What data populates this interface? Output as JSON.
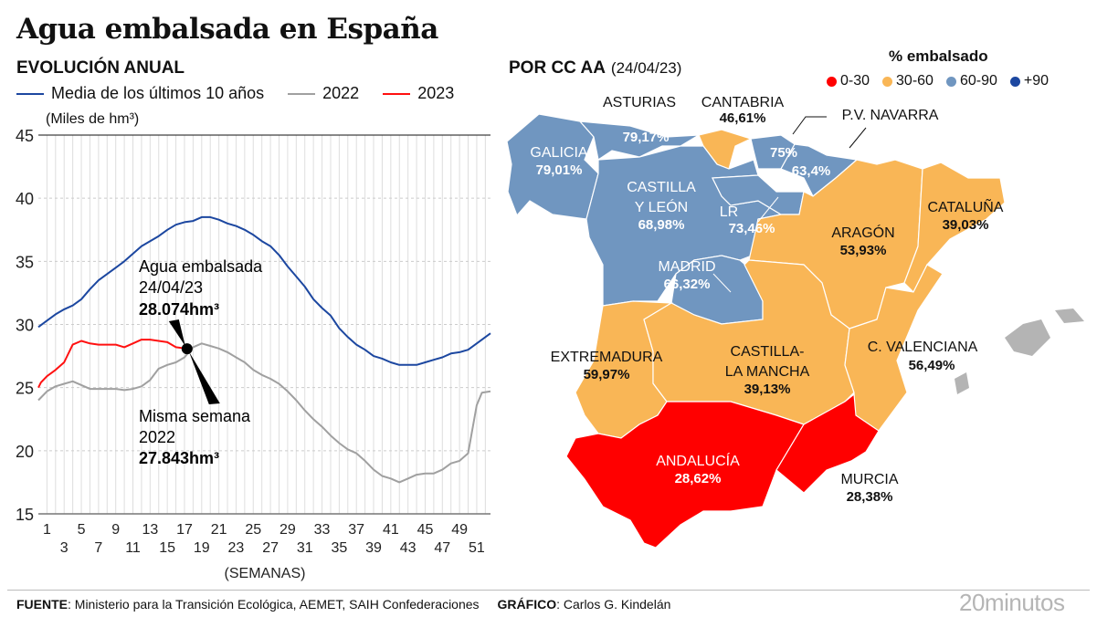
{
  "title": "Agua embalsada en España",
  "left_panel": {
    "subtitle": "EVOLUCIÓN ANUAL",
    "unit_label": "(Miles de hm³)",
    "legend": [
      {
        "label": "Media de los últimos 10 años",
        "color": "#1c47a0"
      },
      {
        "label": "2022",
        "color": "#a0a0a0"
      },
      {
        "label": "2023",
        "color": "#ff1010"
      }
    ]
  },
  "chart_data": {
    "type": "line",
    "xlabel": "(SEMANAS)",
    "ylabel": "(Miles de hm³)",
    "ylim": [
      15,
      45
    ],
    "yticks": [
      15,
      20,
      25,
      30,
      35,
      40,
      45
    ],
    "xticks": [
      1,
      3,
      5,
      7,
      9,
      11,
      13,
      15,
      17,
      19,
      21,
      23,
      25,
      27,
      29,
      31,
      33,
      35,
      37,
      39,
      41,
      43,
      45,
      47,
      49,
      51
    ],
    "xlim": [
      0,
      52.6
    ],
    "grid": {
      "vertical_per_week": true,
      "horizontal_dashed": true
    },
    "series": [
      {
        "name": "Media de los últimos 10 años",
        "color": "#1c47a0",
        "x": [
          0,
          1,
          2,
          3,
          4,
          5,
          6,
          7,
          8,
          9,
          10,
          11,
          12,
          13,
          14,
          15,
          16,
          17,
          18,
          19,
          20,
          21,
          22,
          23,
          24,
          25,
          26,
          27,
          28,
          29,
          30,
          31,
          32,
          33,
          34,
          35,
          36,
          37,
          38,
          39,
          40,
          41,
          42,
          43,
          44,
          45,
          46,
          47,
          48,
          49,
          50,
          51,
          52.6
        ],
        "values": [
          29.8,
          30.3,
          30.8,
          31.2,
          31.5,
          32.0,
          32.8,
          33.5,
          34.0,
          34.5,
          35.0,
          35.6,
          36.2,
          36.6,
          37.0,
          37.5,
          37.9,
          38.1,
          38.2,
          38.5,
          38.5,
          38.3,
          38.0,
          37.8,
          37.5,
          37.1,
          36.6,
          36.2,
          35.5,
          34.6,
          33.8,
          33.0,
          32.0,
          31.3,
          30.7,
          29.7,
          29.0,
          28.4,
          28.0,
          27.5,
          27.3,
          27.0,
          26.8,
          26.8,
          26.8,
          27.0,
          27.2,
          27.4,
          27.7,
          27.8,
          28.0,
          28.5,
          29.3
        ]
      },
      {
        "name": "2022",
        "color": "#a0a0a0",
        "x": [
          0,
          1,
          2,
          3,
          4,
          5,
          6,
          7,
          8,
          9,
          10,
          11,
          12,
          13,
          14,
          15,
          16,
          17,
          18,
          19,
          20,
          21,
          22,
          23,
          24,
          25,
          26,
          27,
          28,
          29,
          30,
          31,
          32,
          33,
          34,
          35,
          36,
          37,
          38,
          39,
          40,
          41,
          42,
          43,
          44,
          45,
          46,
          47,
          48,
          49,
          50,
          51,
          51.6,
          52.6
        ],
        "values": [
          24.0,
          24.7,
          25.1,
          25.3,
          25.5,
          25.2,
          24.9,
          24.9,
          24.9,
          24.9,
          24.8,
          24.9,
          25.1,
          25.6,
          26.5,
          26.8,
          27.0,
          27.4,
          28.2,
          28.5,
          28.3,
          28.1,
          27.8,
          27.4,
          27.0,
          26.4,
          26.0,
          25.7,
          25.3,
          24.7,
          24.0,
          23.2,
          22.5,
          21.9,
          21.2,
          20.6,
          20.1,
          19.8,
          19.2,
          18.5,
          18.0,
          17.8,
          17.5,
          17.8,
          18.1,
          18.2,
          18.2,
          18.5,
          19.0,
          19.2,
          19.8,
          23.6,
          24.6,
          24.7
        ]
      },
      {
        "name": "2023",
        "color": "#ff1010",
        "x": [
          0,
          0.3,
          1,
          2,
          3,
          4,
          5,
          6,
          7,
          8,
          9,
          10,
          11,
          12,
          13,
          14,
          15,
          16,
          17.3
        ],
        "values": [
          25.0,
          25.4,
          25.9,
          26.4,
          27.0,
          28.4,
          28.7,
          28.5,
          28.4,
          28.4,
          28.4,
          28.2,
          28.5,
          28.8,
          28.8,
          28.7,
          28.6,
          28.2,
          28.074
        ]
      }
    ],
    "annotations": [
      {
        "lines": [
          "Agua embalsada",
          "24/04/23"
        ],
        "value": "28.074hm³",
        "week": 17.3,
        "y": 28.074
      },
      {
        "lines": [
          "Misma semana",
          "2022"
        ],
        "value": "27.843hm³",
        "week": 17.3,
        "y": 27.843
      }
    ]
  },
  "right_panel": {
    "subtitle": "POR CC AA",
    "date": "(24/04/23)",
    "legend_title": "% embalsado",
    "legend": [
      {
        "label": "0-30",
        "color": "#ff0000"
      },
      {
        "label": "30-60",
        "color": "#f9b656"
      },
      {
        "label": "60-90",
        "color": "#7096c0"
      },
      {
        "label": "+90",
        "color": "#1c47a0"
      }
    ],
    "regions": [
      {
        "id": "galicia",
        "name": "GALICIA",
        "value": "79,01%",
        "range": "60-90"
      },
      {
        "id": "asturias",
        "name": "ASTURIAS",
        "value": "79,17%",
        "range": "60-90"
      },
      {
        "id": "cantabria",
        "name": "CANTABRIA",
        "value": "46,61%",
        "range": "30-60"
      },
      {
        "id": "pv",
        "name": "P.V.",
        "value": "75%",
        "range": "60-90"
      },
      {
        "id": "navarra",
        "name": "NAVARRA",
        "value": "63,4%",
        "range": "60-90"
      },
      {
        "id": "cyl",
        "name": "CASTILLA\nY LEÓN",
        "value": "68,98%",
        "range": "60-90"
      },
      {
        "id": "rioja",
        "name": "LR",
        "value": "73,46%",
        "range": "60-90"
      },
      {
        "id": "madrid",
        "name": "MADRID",
        "value": "66,32%",
        "range": "60-90"
      },
      {
        "id": "aragon",
        "name": "ARAGÓN",
        "value": "53,93%",
        "range": "30-60"
      },
      {
        "id": "cataluna",
        "name": "CATALUÑA",
        "value": "39,03%",
        "range": "30-60"
      },
      {
        "id": "extremadura",
        "name": "EXTREMADURA",
        "value": "59,97%",
        "range": "30-60"
      },
      {
        "id": "clm",
        "name": "CASTILLA-\nLA MANCHA",
        "value": "39,13%",
        "range": "30-60"
      },
      {
        "id": "valencia",
        "name": "C. VALENCIANA",
        "value": "56,49%",
        "range": "30-60"
      },
      {
        "id": "andalucia",
        "name": "ANDALUCÍA",
        "value": "28,62%",
        "range": "0-30"
      },
      {
        "id": "murcia",
        "name": "MURCIA",
        "value": "28,38%",
        "range": "0-30"
      }
    ],
    "no_data_color": "#b4b4b4"
  },
  "footer": {
    "source_label": "FUENTE",
    "source": ": Ministerio para la Transición Ecológica, AEMET, SAIH Confederaciones",
    "graphic_label": "GRÁFICO",
    "graphic": ": Carlos G. Kindelán",
    "logo": "20minutos"
  }
}
